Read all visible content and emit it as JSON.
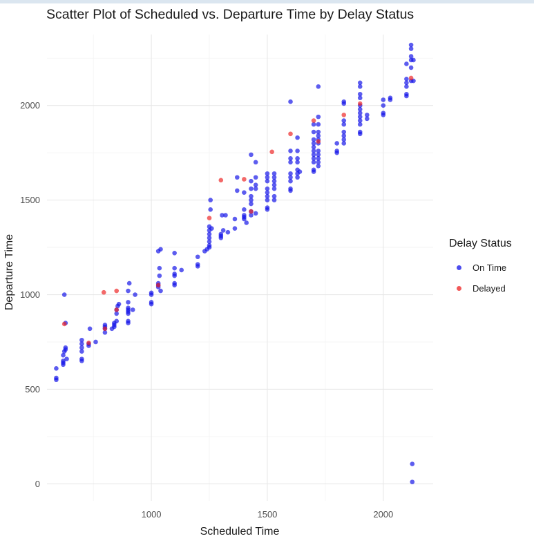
{
  "chart_data": {
    "type": "scatter",
    "title": "Scatter Plot of Scheduled vs. Departure Time by Delay Status",
    "xlabel": "Scheduled Time",
    "ylabel": "Departure Time",
    "xlim": [
      550,
      2215
    ],
    "ylim": [
      -90,
      2375
    ],
    "xticks": [
      1000,
      1500,
      2000
    ],
    "yticks": [
      0,
      500,
      1000,
      1500,
      2000
    ],
    "legend": {
      "title": "Delay Status",
      "position": "right"
    },
    "series": [
      {
        "name": "On Time",
        "color": "#1010e8",
        "points": [
          [
            590,
            550
          ],
          [
            590,
            560
          ],
          [
            590,
            610
          ],
          [
            620,
            630
          ],
          [
            620,
            640
          ],
          [
            620,
            650
          ],
          [
            620,
            680
          ],
          [
            625,
            700
          ],
          [
            630,
            710
          ],
          [
            630,
            720
          ],
          [
            625,
            1000
          ],
          [
            630,
            850
          ],
          [
            635,
            660
          ],
          [
            700,
            650
          ],
          [
            700,
            660
          ],
          [
            700,
            700
          ],
          [
            700,
            720
          ],
          [
            700,
            740
          ],
          [
            700,
            760
          ],
          [
            730,
            730
          ],
          [
            730,
            740
          ],
          [
            735,
            820
          ],
          [
            760,
            750
          ],
          [
            800,
            800
          ],
          [
            800,
            820
          ],
          [
            800,
            830
          ],
          [
            800,
            840
          ],
          [
            830,
            820
          ],
          [
            840,
            830
          ],
          [
            840,
            840
          ],
          [
            840,
            850
          ],
          [
            850,
            860
          ],
          [
            850,
            900
          ],
          [
            850,
            920
          ],
          [
            855,
            940
          ],
          [
            860,
            950
          ],
          [
            900,
            850
          ],
          [
            900,
            860
          ],
          [
            900,
            900
          ],
          [
            900,
            910
          ],
          [
            900,
            920
          ],
          [
            900,
            930
          ],
          [
            900,
            960
          ],
          [
            900,
            1020
          ],
          [
            905,
            1060
          ],
          [
            920,
            920
          ],
          [
            930,
            1000
          ],
          [
            1000,
            950
          ],
          [
            1000,
            960
          ],
          [
            1000,
            1000
          ],
          [
            1000,
            1010
          ],
          [
            1030,
            1040
          ],
          [
            1030,
            1050
          ],
          [
            1030,
            1060
          ],
          [
            1035,
            1100
          ],
          [
            1035,
            1140
          ],
          [
            1030,
            1230
          ],
          [
            1040,
            1240
          ],
          [
            1040,
            1020
          ],
          [
            1100,
            1050
          ],
          [
            1100,
            1060
          ],
          [
            1100,
            1100
          ],
          [
            1100,
            1110
          ],
          [
            1100,
            1140
          ],
          [
            1100,
            1220
          ],
          [
            1130,
            1130
          ],
          [
            1200,
            1150
          ],
          [
            1200,
            1160
          ],
          [
            1200,
            1200
          ],
          [
            1230,
            1230
          ],
          [
            1240,
            1240
          ],
          [
            1250,
            1250
          ],
          [
            1250,
            1260
          ],
          [
            1250,
            1280
          ],
          [
            1250,
            1300
          ],
          [
            1250,
            1320
          ],
          [
            1250,
            1340
          ],
          [
            1250,
            1360
          ],
          [
            1255,
            1450
          ],
          [
            1255,
            1500
          ],
          [
            1260,
            1350
          ],
          [
            1300,
            1300
          ],
          [
            1300,
            1310
          ],
          [
            1300,
            1320
          ],
          [
            1310,
            1340
          ],
          [
            1305,
            1420
          ],
          [
            1320,
            1420
          ],
          [
            1330,
            1330
          ],
          [
            1360,
            1350
          ],
          [
            1360,
            1400
          ],
          [
            1370,
            1550
          ],
          [
            1370,
            1620
          ],
          [
            1400,
            1400
          ],
          [
            1400,
            1410
          ],
          [
            1400,
            1420
          ],
          [
            1400,
            1450
          ],
          [
            1400,
            1540
          ],
          [
            1410,
            1380
          ],
          [
            1430,
            1420
          ],
          [
            1430,
            1440
          ],
          [
            1430,
            1480
          ],
          [
            1430,
            1500
          ],
          [
            1430,
            1520
          ],
          [
            1430,
            1560
          ],
          [
            1430,
            1600
          ],
          [
            1430,
            1740
          ],
          [
            1450,
            1700
          ],
          [
            1450,
            1620
          ],
          [
            1450,
            1580
          ],
          [
            1450,
            1560
          ],
          [
            1450,
            1430
          ],
          [
            1500,
            1450
          ],
          [
            1500,
            1460
          ],
          [
            1500,
            1500
          ],
          [
            1500,
            1520
          ],
          [
            1500,
            1540
          ],
          [
            1500,
            1560
          ],
          [
            1500,
            1600
          ],
          [
            1500,
            1620
          ],
          [
            1500,
            1640
          ],
          [
            1530,
            1500
          ],
          [
            1530,
            1520
          ],
          [
            1530,
            1560
          ],
          [
            1530,
            1580
          ],
          [
            1530,
            1600
          ],
          [
            1530,
            1620
          ],
          [
            1530,
            1640
          ],
          [
            1600,
            1550
          ],
          [
            1600,
            1560
          ],
          [
            1600,
            1600
          ],
          [
            1600,
            1620
          ],
          [
            1600,
            1640
          ],
          [
            1600,
            1700
          ],
          [
            1600,
            1720
          ],
          [
            1600,
            1760
          ],
          [
            1600,
            2020
          ],
          [
            1630,
            1620
          ],
          [
            1630,
            1640
          ],
          [
            1630,
            1660
          ],
          [
            1630,
            1700
          ],
          [
            1630,
            1760
          ],
          [
            1630,
            1830
          ],
          [
            1630,
            1720
          ],
          [
            1640,
            1650
          ],
          [
            1700,
            1650
          ],
          [
            1700,
            1660
          ],
          [
            1700,
            1700
          ],
          [
            1700,
            1720
          ],
          [
            1700,
            1740
          ],
          [
            1700,
            1760
          ],
          [
            1700,
            1780
          ],
          [
            1700,
            1800
          ],
          [
            1700,
            1820
          ],
          [
            1700,
            1860
          ],
          [
            1700,
            1900
          ],
          [
            1720,
            1680
          ],
          [
            1720,
            1700
          ],
          [
            1720,
            1720
          ],
          [
            1720,
            1740
          ],
          [
            1720,
            1760
          ],
          [
            1720,
            1800
          ],
          [
            1720,
            1820
          ],
          [
            1720,
            1840
          ],
          [
            1720,
            1860
          ],
          [
            1720,
            1900
          ],
          [
            1720,
            1940
          ],
          [
            1720,
            2100
          ],
          [
            1800,
            1750
          ],
          [
            1800,
            1760
          ],
          [
            1800,
            1800
          ],
          [
            1830,
            1800
          ],
          [
            1830,
            1820
          ],
          [
            1830,
            1840
          ],
          [
            1830,
            1860
          ],
          [
            1830,
            1900
          ],
          [
            1830,
            1920
          ],
          [
            1830,
            2010
          ],
          [
            1830,
            2020
          ],
          [
            1900,
            1850
          ],
          [
            1900,
            1860
          ],
          [
            1900,
            1900
          ],
          [
            1900,
            1920
          ],
          [
            1900,
            1940
          ],
          [
            1900,
            1960
          ],
          [
            1900,
            1980
          ],
          [
            1900,
            2000
          ],
          [
            1900,
            2040
          ],
          [
            1900,
            2060
          ],
          [
            1900,
            2100
          ],
          [
            1900,
            2120
          ],
          [
            1930,
            1930
          ],
          [
            1930,
            1950
          ],
          [
            2000,
            1950
          ],
          [
            2000,
            1960
          ],
          [
            2000,
            2000
          ],
          [
            2000,
            2030
          ],
          [
            2030,
            2030
          ],
          [
            2030,
            2040
          ],
          [
            2100,
            2050
          ],
          [
            2100,
            2060
          ],
          [
            2100,
            2100
          ],
          [
            2100,
            2120
          ],
          [
            2100,
            2140
          ],
          [
            2100,
            2220
          ],
          [
            2120,
            2130
          ],
          [
            2120,
            2200
          ],
          [
            2120,
            2240
          ],
          [
            2120,
            2260
          ],
          [
            2120,
            2300
          ],
          [
            2120,
            2320
          ],
          [
            2130,
            2240
          ],
          [
            2130,
            2130
          ],
          [
            2125,
            105
          ],
          [
            2125,
            10
          ]
        ]
      },
      {
        "name": "Delayed",
        "color": "#ee2222",
        "points": [
          [
            625,
            845
          ],
          [
            730,
            745
          ],
          [
            795,
            1012
          ],
          [
            800,
            820
          ],
          [
            850,
            1020
          ],
          [
            850,
            920
          ],
          [
            1030,
            1050
          ],
          [
            1250,
            1405
          ],
          [
            1300,
            1605
          ],
          [
            1400,
            1610
          ],
          [
            1430,
            1440
          ],
          [
            1520,
            1755
          ],
          [
            1600,
            1850
          ],
          [
            1700,
            1920
          ],
          [
            1720,
            1810
          ],
          [
            1830,
            1950
          ],
          [
            1900,
            2010
          ],
          [
            2120,
            2145
          ]
        ]
      }
    ]
  }
}
